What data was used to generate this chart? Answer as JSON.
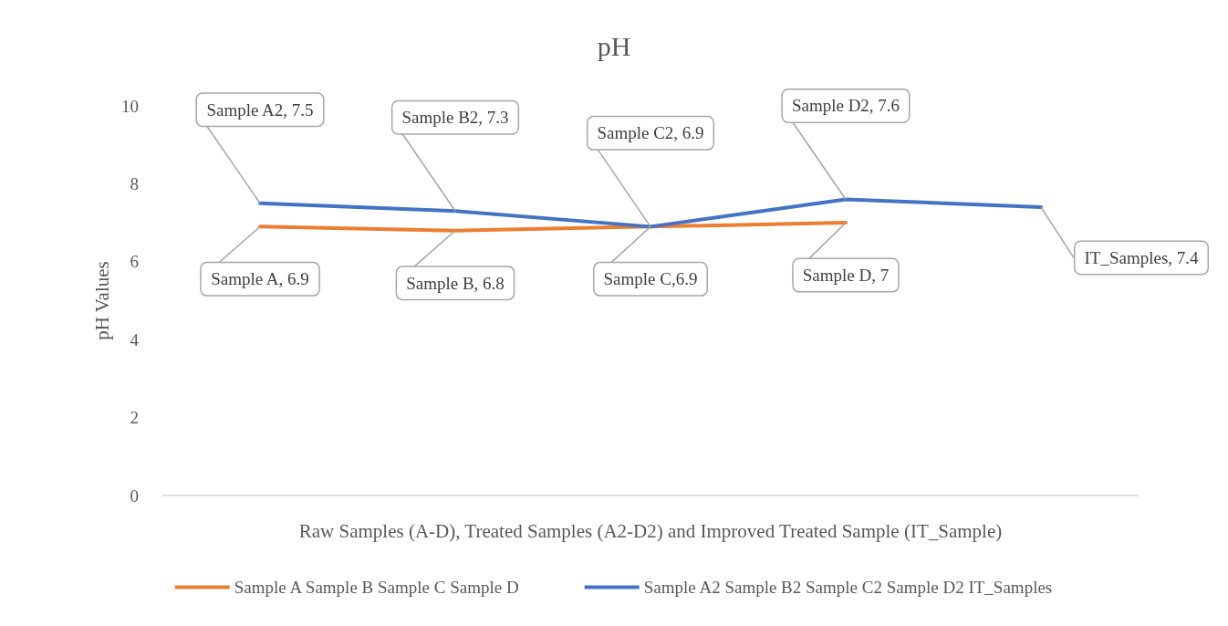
{
  "chart_data": {
    "type": "line",
    "title": "pH",
    "xlabel": "Raw Samples (A-D), Treated Samples (A2-D2) and Improved Treated Sample (IT_Sample)",
    "ylabel": "pH Values",
    "categories": [
      null,
      null,
      null,
      null,
      null
    ],
    "series": [
      {
        "name": "Sample A Sample B Sample C Sample D",
        "color": "#ed7d31",
        "values": [
          6.9,
          6.8,
          6.9,
          7,
          null
        ],
        "value_labels": [
          "Sample A, 6.9",
          "Sample B, 6.8",
          "Sample C,6.9",
          "Sample D, 7",
          null
        ]
      },
      {
        "name": "Sample A2 Sample B2 Sample C2 Sample D2 IT_Samples",
        "color": "#4472c4",
        "values": [
          7.5,
          7.3,
          6.9,
          7.6,
          7.4
        ],
        "value_labels": [
          "Sample A2, 7.5",
          "Sample B2, 7.3",
          "Sample C2, 6.9",
          "Sample D2, 7.6",
          "IT_Samples, 7.4"
        ]
      }
    ],
    "ylim": [
      0,
      10
    ],
    "yticks": [
      0,
      2,
      4,
      6,
      8,
      10
    ],
    "grid": false,
    "legend": "bottom",
    "marker": "none",
    "line_style": "solid",
    "tick_labels": "y"
  }
}
